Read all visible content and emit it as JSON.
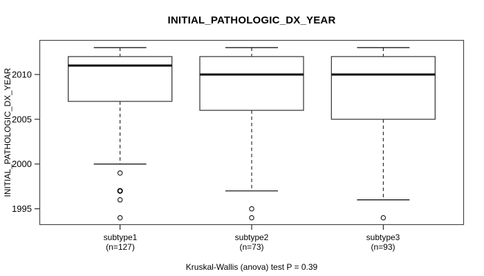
{
  "title": "INITIAL_PATHOLOGIC_DX_YEAR",
  "chart_data": {
    "type": "boxplot",
    "title": "INITIAL_PATHOLOGIC_DX_YEAR",
    "ylabel": "INITIAL_PATHOLOGIC_DX_YEAR",
    "xlabel": "",
    "ylim": [
      1993.2,
      2013.85
    ],
    "yticks": [
      1995,
      2000,
      2005,
      2010
    ],
    "grid": false,
    "legend": "none",
    "footnote": "Kruskal-Wallis (anova) test P = 0.39",
    "groups": [
      {
        "label": "subtype1",
        "n_label": "(n=127)",
        "n": 127,
        "whisker_low": 2000,
        "q1": 2007,
        "median": 2011,
        "q3": 2012,
        "whisker_high": 2013,
        "outliers": [
          1999,
          1997,
          1997,
          1996,
          1994
        ]
      },
      {
        "label": "subtype2",
        "n_label": "(n=73)",
        "n": 73,
        "whisker_low": 1997,
        "q1": 2006,
        "median": 2010,
        "q3": 2012,
        "whisker_high": 2013,
        "outliers": [
          1995,
          1994
        ]
      },
      {
        "label": "subtype3",
        "n_label": "(n=93)",
        "n": 93,
        "whisker_low": 1996,
        "q1": 2005,
        "median": 2010,
        "q3": 2012,
        "whisker_high": 2013,
        "outliers": [
          1994
        ]
      }
    ],
    "colors": {
      "box_fill": "#ffffff",
      "box_border": "#3d3d3d",
      "median": "#000000",
      "frame": "#454545",
      "text": "#000000"
    }
  }
}
